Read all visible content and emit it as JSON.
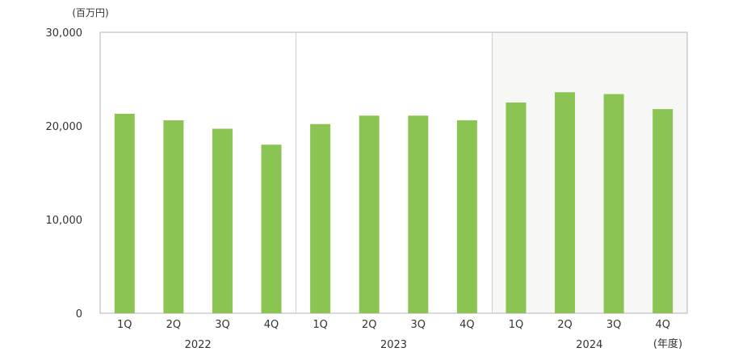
{
  "colors": {
    "bar": "#8cc453",
    "axis": "#b3b3b3",
    "year_divider": "#d0d0d0",
    "highlight_band": "#f7f7f5",
    "text": "#333333"
  },
  "chart_data": {
    "type": "bar",
    "y_unit_label": "(百万円)",
    "x_unit_label": "(年度)",
    "ylim": [
      0,
      30000
    ],
    "y_ticks": [
      "0",
      "10,000",
      "20,000",
      "30,000"
    ],
    "y_tick_values": [
      0,
      10000,
      20000,
      30000
    ],
    "grid": false,
    "highlighted_year": "2024",
    "categories": [
      "1Q",
      "2Q",
      "3Q",
      "4Q",
      "1Q",
      "2Q",
      "3Q",
      "4Q",
      "1Q",
      "2Q",
      "3Q",
      "4Q"
    ],
    "years": [
      {
        "label": "2022",
        "quarters": [
          "1Q",
          "2Q",
          "3Q",
          "4Q"
        ]
      },
      {
        "label": "2023",
        "quarters": [
          "1Q",
          "2Q",
          "3Q",
          "4Q"
        ]
      },
      {
        "label": "2024",
        "quarters": [
          "1Q",
          "2Q",
          "3Q",
          "4Q"
        ]
      }
    ],
    "values": [
      21300,
      20600,
      19700,
      18000,
      20200,
      21100,
      21100,
      20600,
      22500,
      23600,
      23400,
      21800
    ]
  }
}
